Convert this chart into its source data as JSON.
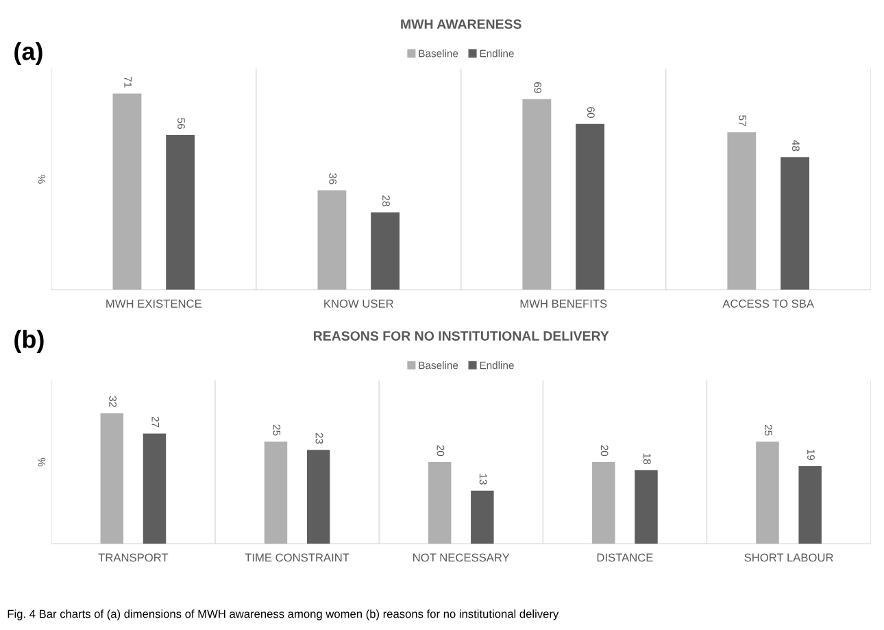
{
  "chart_data": [
    {
      "type": "bar",
      "title": "MWH AWARENESS",
      "ylabel": "%",
      "categories": [
        "MWH EXISTENCE",
        "KNOW USER",
        "MWH BENEFITS",
        "ACCESS TO SBA"
      ],
      "series": [
        {
          "name": "Baseline",
          "color": "#b0b0b0",
          "values": [
            71,
            36,
            69,
            57
          ]
        },
        {
          "name": "Endline",
          "color": "#5e5e5e",
          "values": [
            56,
            28,
            60,
            48
          ]
        }
      ],
      "ylim": [
        0,
        80
      ],
      "tick_labels": "x",
      "data_labels": true,
      "legend": "top",
      "grid": false,
      "annotations": [
        "(a)"
      ]
    },
    {
      "type": "bar",
      "title": "REASONS FOR NO INSTITUTIONAL DELIVERY",
      "ylabel": "%",
      "categories": [
        "TRANSPORT",
        "TIME CONSTRAINT",
        "NOT NECESSARY",
        "DISTANCE",
        "SHORT LABOUR"
      ],
      "series": [
        {
          "name": "Baseline",
          "color": "#b0b0b0",
          "values": [
            32,
            25,
            20,
            20,
            25
          ]
        },
        {
          "name": "Endline",
          "color": "#5e5e5e",
          "values": [
            27,
            23,
            13,
            18,
            19
          ]
        }
      ],
      "ylim": [
        0,
        40
      ],
      "tick_labels": "x",
      "data_labels": true,
      "legend": "top",
      "grid": false,
      "annotations": [
        "(b)",
        "Fig. 4 Bar charts of (a) dimensions of MWH awareness among women (b) reasons for no institutional delivery"
      ]
    }
  ]
}
